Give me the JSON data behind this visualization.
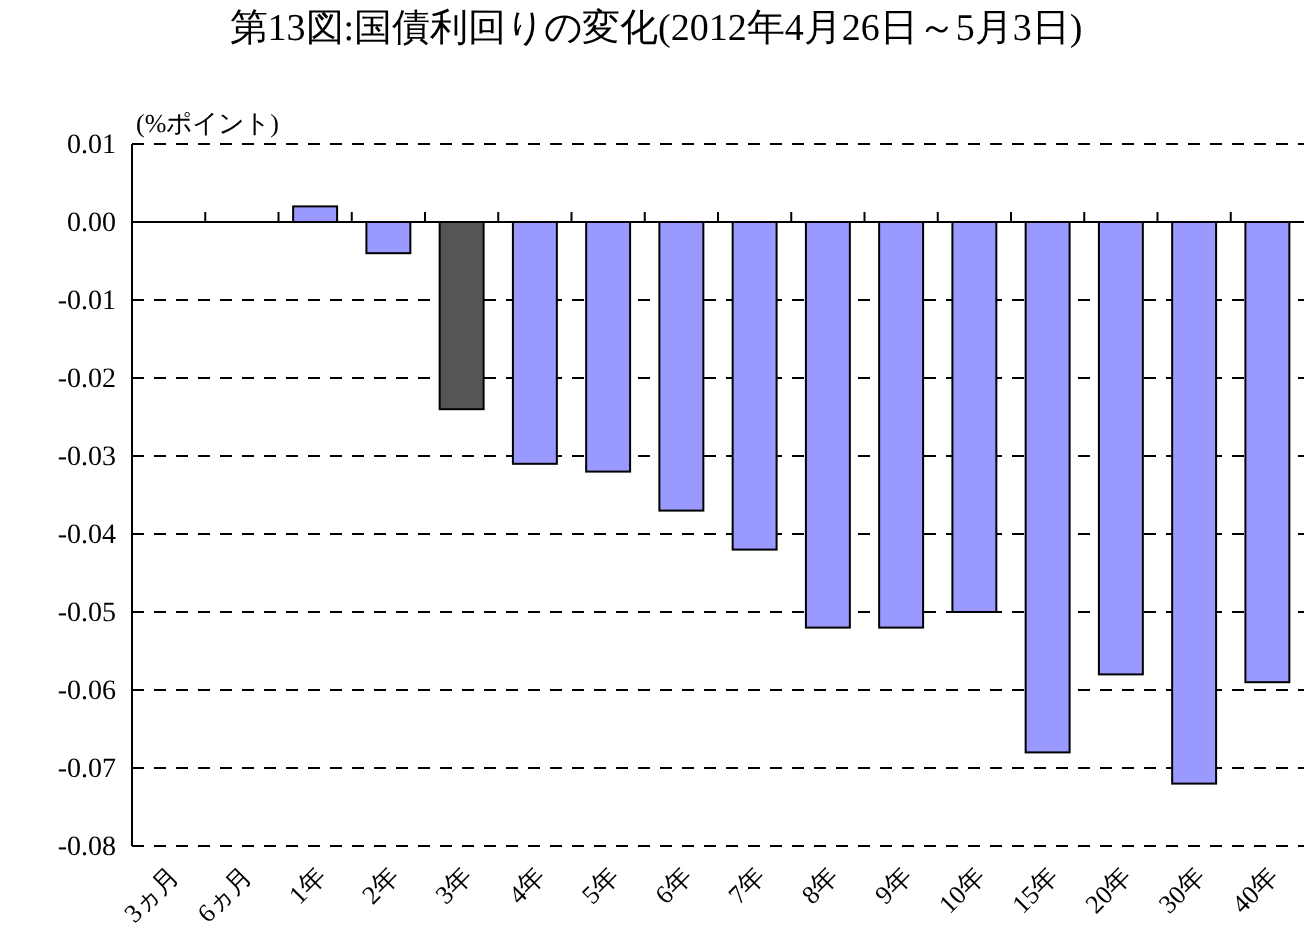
{
  "chart_data": {
    "type": "bar",
    "title": "第13図:国債利回りの変化(2012年4月26日～5月3日)",
    "ylabel": "(%ポイント)",
    "categories": [
      "3ヵ月",
      "6ヵ月",
      "1年",
      "2年",
      "3年",
      "4年",
      "5年",
      "6年",
      "7年",
      "8年",
      "9年",
      "10年",
      "15年",
      "20年",
      "30年",
      "40年"
    ],
    "values": [
      0,
      0,
      0.002,
      -0.004,
      -0.024,
      -0.031,
      -0.032,
      -0.037,
      -0.042,
      -0.052,
      -0.052,
      -0.05,
      -0.068,
      -0.058,
      -0.072,
      -0.059
    ],
    "colors": [
      "#9999ff",
      "#9999ff",
      "#9999ff",
      "#9999ff",
      "#555555",
      "#9999ff",
      "#9999ff",
      "#9999ff",
      "#9999ff",
      "#9999ff",
      "#9999ff",
      "#9999ff",
      "#9999ff",
      "#9999ff",
      "#9999ff",
      "#9999ff"
    ],
    "ylim": [
      -0.08,
      0.01
    ],
    "yticks": [
      {
        "value": -0.08,
        "label": "-0.08"
      },
      {
        "value": -0.07,
        "label": "-0.07"
      },
      {
        "value": -0.06,
        "label": "-0.06"
      },
      {
        "value": -0.05,
        "label": "-0.05"
      },
      {
        "value": -0.04,
        "label": "-0.04"
      },
      {
        "value": -0.03,
        "label": "-0.03"
      },
      {
        "value": -0.02,
        "label": "-0.02"
      },
      {
        "value": -0.01,
        "label": "-0.01"
      },
      {
        "value": 0,
        "label": "0.00"
      },
      {
        "value": 0.01,
        "label": "0.01"
      }
    ],
    "grid": "y"
  }
}
